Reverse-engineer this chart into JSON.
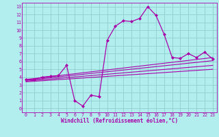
{
  "bg_color": "#b2eeee",
  "grid_color": "#8ecece",
  "line_color": "#aa00aa",
  "xlabel": "Windchill (Refroidissement éolien,°C)",
  "ylim": [
    -0.5,
    13.5
  ],
  "xlim": [
    -0.5,
    23.5
  ],
  "yticks": [
    0,
    1,
    2,
    3,
    4,
    5,
    6,
    7,
    8,
    9,
    10,
    11,
    12,
    13
  ],
  "xticks": [
    0,
    1,
    2,
    3,
    4,
    5,
    6,
    7,
    8,
    9,
    10,
    11,
    12,
    13,
    14,
    15,
    16,
    17,
    18,
    19,
    20,
    21,
    22,
    23
  ],
  "main_x": [
    0,
    1,
    2,
    3,
    4,
    5,
    6,
    7,
    8,
    9,
    10,
    11,
    12,
    13,
    14,
    15,
    16,
    17,
    18,
    19,
    20,
    21,
    22,
    23
  ],
  "main_y": [
    3.7,
    3.7,
    4.0,
    4.1,
    4.2,
    5.5,
    1.0,
    0.3,
    1.7,
    1.5,
    8.7,
    10.5,
    11.2,
    11.1,
    11.5,
    13.0,
    11.9,
    9.5,
    6.5,
    6.4,
    7.0,
    6.5,
    7.2,
    6.3
  ],
  "trend_lines": [
    [
      [
        0,
        23
      ],
      [
        3.7,
        6.5
      ]
    ],
    [
      [
        0,
        23
      ],
      [
        3.6,
        6.1
      ]
    ],
    [
      [
        0,
        23
      ],
      [
        3.5,
        5.5
      ]
    ],
    [
      [
        0,
        23
      ],
      [
        3.4,
        5.0
      ]
    ]
  ]
}
